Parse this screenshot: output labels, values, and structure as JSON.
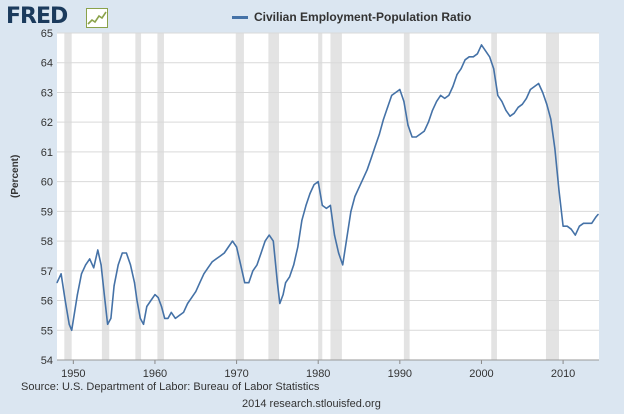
{
  "header": {
    "logo_text": "FRED"
  },
  "footer": {
    "source": "Source: U.S. Department of Labor: Bureau of Labor Statistics",
    "credit": "2014 research.stlouisfed.org"
  },
  "colors": {
    "line": "#4572a7",
    "recession": "#e3e3e3",
    "grid": "#d9d9d9",
    "background": "#dbe6f1",
    "plot": "#ffffff"
  },
  "chart_data": {
    "type": "line",
    "title": "",
    "xlabel": "",
    "ylabel": "(Percent)",
    "legend": "top-center",
    "grid": true,
    "xlim": [
      1948,
      2014.4
    ],
    "ylim": [
      54,
      65
    ],
    "x_ticks": [
      1950,
      1960,
      1970,
      1980,
      1990,
      2000,
      2010
    ],
    "y_ticks": [
      54,
      55,
      56,
      57,
      58,
      59,
      60,
      61,
      62,
      63,
      64,
      65
    ],
    "recessions": [
      [
        1948.9,
        1949.8
      ],
      [
        1953.5,
        1954.4
      ],
      [
        1957.6,
        1958.3
      ],
      [
        1960.3,
        1961.1
      ],
      [
        1969.9,
        1970.9
      ],
      [
        1973.9,
        1975.2
      ],
      [
        1980.0,
        1980.5
      ],
      [
        1981.5,
        1982.9
      ],
      [
        1990.5,
        1991.2
      ],
      [
        2001.2,
        2001.9
      ],
      [
        2007.9,
        2009.5
      ]
    ],
    "series": [
      {
        "name": "Civilian Employment-Population Ratio",
        "x": [
          1948.0,
          1948.5,
          1949.0,
          1949.5,
          1949.8,
          1950.5,
          1951.0,
          1951.5,
          1952.0,
          1952.5,
          1953.0,
          1953.4,
          1953.8,
          1954.2,
          1954.6,
          1955.0,
          1955.5,
          1956.0,
          1956.5,
          1957.0,
          1957.5,
          1957.8,
          1958.2,
          1958.6,
          1959.0,
          1959.5,
          1960.0,
          1960.4,
          1960.8,
          1961.2,
          1961.6,
          1962.0,
          1962.5,
          1963.0,
          1963.5,
          1964.0,
          1964.5,
          1965.0,
          1965.5,
          1966.0,
          1966.5,
          1967.0,
          1967.5,
          1968.0,
          1968.5,
          1969.0,
          1969.5,
          1970.0,
          1970.5,
          1971.0,
          1971.5,
          1972.0,
          1972.5,
          1973.0,
          1973.5,
          1974.0,
          1974.5,
          1975.0,
          1975.3,
          1975.7,
          1976.0,
          1976.5,
          1977.0,
          1977.5,
          1978.0,
          1978.5,
          1979.0,
          1979.5,
          1980.0,
          1980.5,
          1981.0,
          1981.5,
          1982.0,
          1982.5,
          1983.0,
          1983.5,
          1984.0,
          1984.5,
          1985.0,
          1985.5,
          1986.0,
          1986.5,
          1987.0,
          1987.5,
          1988.0,
          1988.5,
          1989.0,
          1989.5,
          1990.0,
          1990.5,
          1991.0,
          1991.5,
          1992.0,
          1992.5,
          1993.0,
          1993.5,
          1994.0,
          1994.5,
          1995.0,
          1995.5,
          1996.0,
          1996.5,
          1997.0,
          1997.5,
          1998.0,
          1998.5,
          1999.0,
          1999.5,
          2000.0,
          2000.5,
          2001.0,
          2001.5,
          2002.0,
          2002.5,
          2003.0,
          2003.5,
          2004.0,
          2004.5,
          2005.0,
          2005.5,
          2006.0,
          2006.5,
          2007.0,
          2007.5,
          2008.0,
          2008.5,
          2009.0,
          2009.5,
          2010.0,
          2010.5,
          2011.0,
          2011.5,
          2012.0,
          2012.5,
          2013.0,
          2013.5,
          2014.0,
          2014.3
        ],
        "values": [
          56.6,
          56.9,
          56.0,
          55.2,
          55.0,
          56.2,
          56.9,
          57.2,
          57.4,
          57.1,
          57.7,
          57.2,
          56.2,
          55.2,
          55.4,
          56.5,
          57.2,
          57.6,
          57.6,
          57.2,
          56.6,
          56.0,
          55.4,
          55.2,
          55.8,
          56.0,
          56.2,
          56.1,
          55.8,
          55.4,
          55.4,
          55.6,
          55.4,
          55.5,
          55.6,
          55.9,
          56.1,
          56.3,
          56.6,
          56.9,
          57.1,
          57.3,
          57.4,
          57.5,
          57.6,
          57.8,
          58.0,
          57.8,
          57.2,
          56.6,
          56.6,
          57.0,
          57.2,
          57.6,
          58.0,
          58.2,
          58.0,
          56.6,
          55.9,
          56.2,
          56.6,
          56.8,
          57.2,
          57.8,
          58.7,
          59.2,
          59.6,
          59.9,
          60.0,
          59.2,
          59.1,
          59.2,
          58.2,
          57.6,
          57.2,
          58.1,
          59.0,
          59.5,
          59.8,
          60.1,
          60.4,
          60.8,
          61.2,
          61.6,
          62.1,
          62.5,
          62.9,
          63.0,
          63.1,
          62.7,
          61.9,
          61.5,
          61.5,
          61.6,
          61.7,
          62.0,
          62.4,
          62.7,
          62.9,
          62.8,
          62.9,
          63.2,
          63.6,
          63.8,
          64.1,
          64.2,
          64.2,
          64.3,
          64.6,
          64.4,
          64.2,
          63.8,
          62.9,
          62.7,
          62.4,
          62.2,
          62.3,
          62.5,
          62.6,
          62.8,
          63.1,
          63.2,
          63.3,
          63.0,
          62.6,
          62.1,
          61.1,
          59.7,
          58.5,
          58.5,
          58.4,
          58.2,
          58.5,
          58.6,
          58.6,
          58.6,
          58.8,
          58.9
        ]
      }
    ]
  }
}
